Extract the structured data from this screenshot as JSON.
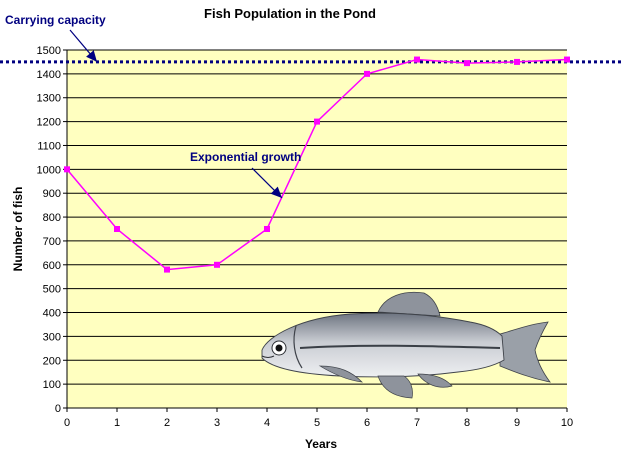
{
  "chart_data": {
    "type": "line",
    "title": "Fish Population in the Pond",
    "xlabel": "Years",
    "ylabel": "Number of fish",
    "x": [
      0,
      1,
      2,
      3,
      4,
      5,
      6,
      7,
      8,
      9,
      10
    ],
    "series": [
      {
        "values": [
          1000,
          750,
          580,
          600,
          750,
          1200,
          1400,
          1460,
          1445,
          1450,
          1460
        ],
        "color": "#ff00ff"
      }
    ],
    "xlim": [
      0,
      10
    ],
    "ylim": [
      0,
      1500
    ],
    "xticks": [
      0,
      1,
      2,
      3,
      4,
      5,
      6,
      7,
      8,
      9,
      10
    ],
    "yticks": [
      0,
      100,
      200,
      300,
      400,
      500,
      600,
      700,
      800,
      900,
      1000,
      1100,
      1200,
      1300,
      1400,
      1500
    ],
    "grid": "horizontal",
    "background_color": "#ffffc0",
    "carrying_capacity": {
      "label": "Carrying capacity",
      "value": 1450,
      "color": "#000080",
      "style": "dotted"
    },
    "annotations": [
      {
        "text": "Exponential growth",
        "color": "#000080",
        "points_to_x": 4.3,
        "points_to_y": 880
      },
      {
        "text": "Carrying capacity",
        "color": "#000080",
        "points_to_x": 0.6,
        "points_to_y": 1450
      }
    ],
    "illustration": "fish-drawing"
  }
}
